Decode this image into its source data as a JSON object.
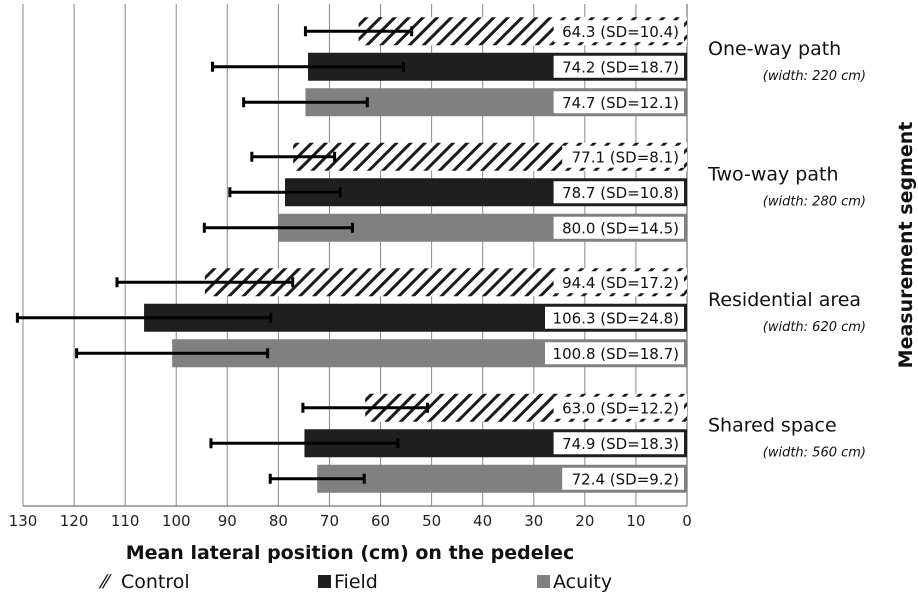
{
  "chart_data": {
    "type": "bar",
    "orientation": "horizontal",
    "x_reversed": true,
    "xlabel": "Mean lateral position (cm) on the pedelec",
    "ylabel": "Measurement segment",
    "xlim": [
      0,
      130
    ],
    "xticks": [
      "130",
      "120",
      "110",
      "100",
      "90",
      "80",
      "70",
      "60",
      "50",
      "40",
      "30",
      "20",
      "10",
      "0"
    ],
    "categories": [
      {
        "name": "One-way path",
        "note": "(width:  220 cm)"
      },
      {
        "name": "Two-way path",
        "note": "(width:  280 cm)"
      },
      {
        "name": "Residential area",
        "note": "(width:  620 cm)"
      },
      {
        "name": "Shared space",
        "note": "(width:  560 cm)"
      }
    ],
    "series": [
      {
        "name": "Control",
        "values": [
          64.3,
          77.1,
          94.4,
          63.0
        ],
        "sd": [
          10.4,
          8.1,
          17.2,
          12.2
        ],
        "labels": [
          "64.3 (SD=10.4)",
          "77.1 (SD=8.1)",
          "94.4 (SD=17.2)",
          "63.0 (SD=12.2)"
        ]
      },
      {
        "name": "Field",
        "values": [
          74.2,
          78.7,
          106.3,
          74.9
        ],
        "sd": [
          18.7,
          10.8,
          24.8,
          18.3
        ],
        "labels": [
          "74.2 (SD=18.7)",
          "78.7 (SD=10.8)",
          "106.3 (SD=24.8)",
          "74.9 (SD=18.3)"
        ]
      },
      {
        "name": "Acuity",
        "values": [
          74.7,
          80.0,
          100.8,
          72.4
        ],
        "sd": [
          12.1,
          14.5,
          18.7,
          9.2
        ],
        "labels": [
          "74.7 (SD=12.1)",
          "80.0 (SD=14.5)",
          "100.8 (SD=18.7)",
          "72.4 (SD=9.2)"
        ]
      }
    ],
    "legend": [
      {
        "glyph": "⁄⁄",
        "label": "Control"
      },
      {
        "glyph": "",
        "label": "Field"
      },
      {
        "glyph": "",
        "label": "Acuity"
      }
    ],
    "legend_position": "bottom",
    "grid": true,
    "colors": {
      "Control": "#ffffff",
      "Field": "#1f1f1f",
      "Acuity": "#808080"
    }
  }
}
